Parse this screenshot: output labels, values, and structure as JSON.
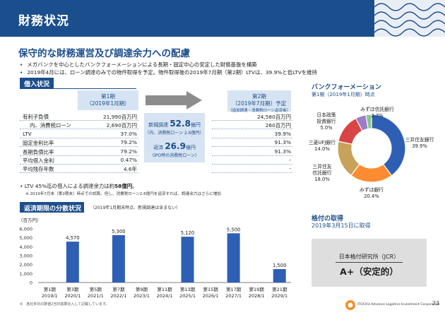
{
  "header": {
    "title": "財務状況"
  },
  "headline": "保守的な財務運営及び調達余力への配慮",
  "bullets": [
    "メガバンクを中心としたバンクフォーメーションによる長期・固定中心の安定した財務基盤を構築",
    "2019年4月には、ローン調達のみでの物件取得を予定。物件取得後の2019年7月期（第2期）LTVは、39.9%と低LTVを維持"
  ],
  "borrowing": {
    "tab": "借入状況",
    "col1": [
      "第1期",
      "（2019年1月期）"
    ],
    "col2": [
      "第2期",
      "（2019年7月期）予定",
      "（追加調達・消費税ローン返済後）"
    ],
    "rows": [
      {
        "label": "有利子負債",
        "v1": "21,990百万円",
        "v2": "24,580百万円"
      },
      {
        "label": "内、消費税ローン",
        "v1": "2,690百万円",
        "v2": "260百万円"
      },
      {
        "label": "LTV",
        "v1": "37.0%",
        "v2": "39.9%"
      },
      {
        "label": "固定金利比率",
        "v1": "79.2%",
        "v2": "91.3%"
      },
      {
        "label": "長期負債比率",
        "v1": "79.2%",
        "v2": "91.3%"
      },
      {
        "label": "平均借入金利",
        "v1": "0.47%",
        "v2": "-"
      },
      {
        "label": "平均残存年数",
        "v1": "4.6年",
        "v2": "-"
      }
    ],
    "new_label": "新規調達",
    "new_value": "52.8",
    "new_unit": "億円",
    "new_note": "（内、消費税ローン 2.6億円）",
    "repay_label": "返済",
    "repay_value": "26.9",
    "repay_unit": "億円",
    "repay_note": "（IPO時の消費税ローン）",
    "ltv_note_pre": "LTV 45%迄の借入による調達余力は約",
    "ltv_note_value": "58億円",
    "ltv_note_post": "。",
    "ltv_subnote": "※ 2019年7月末（第2期末）時点での試算。但し、消費税ローン2.6億円を返済すれば、調達余力はさらに増加"
  },
  "maturity": {
    "title": "返済期限の分散状況",
    "subtitle": "（2019年1月期末時点、新規調達は含まない）",
    "footnote": "※　各社末日の数値2当日換算比入して記載しています。",
    "chart_data": {
      "type": "bar",
      "title": "返済期限の分散状況",
      "ylabel": "（百万円）",
      "ylim": [
        0,
        6000
      ],
      "yticks": [
        "0",
        "1,000",
        "2,000",
        "3,000",
        "4,000",
        "5,000",
        "6,000"
      ],
      "categories": [
        "第1期\n2019/1",
        "第3期\n2020/1",
        "第5期\n2021/1",
        "第7期\n2022/1",
        "第9期\n2023/1",
        "第11期\n2024/1",
        "第13期\n2025/1",
        "第15期\n2026/1",
        "第17期\n2027/1",
        "第19期\n2028/1",
        "第21期\n2029/1"
      ],
      "cat_top": [
        "第1期",
        "第3期",
        "第5期",
        "第7期",
        "第9期",
        "第11期",
        "第13期",
        "第15期",
        "第17期",
        "第19期",
        "第21期"
      ],
      "cat_bottom": [
        "2019/1",
        "2020/1",
        "2021/1",
        "2022/1",
        "2023/1",
        "2024/1",
        "2025/1",
        "2026/1",
        "2027/1",
        "2028/1",
        "2029/1"
      ],
      "values": [
        0,
        4570,
        0,
        5300,
        0,
        0,
        5120,
        0,
        5500,
        0,
        1500
      ],
      "labels": [
        "",
        "4,570",
        "",
        "5,300",
        "",
        "",
        "5,120",
        "",
        "5,500",
        "",
        "1,500"
      ],
      "color": "#2f5fb4"
    }
  },
  "bank": {
    "title": "バンクフォーメーション",
    "subtitle": "第1期（2019年1月期）時点",
    "chart_data": {
      "type": "pie",
      "slices": [
        {
          "name": "三井住友銀行",
          "value": 39.9,
          "label": "39.9%",
          "color": "#2f5fb4"
        },
        {
          "name": "みずほ銀行",
          "value": 20.4,
          "label": "20.4%",
          "color": "#ff8b32"
        },
        {
          "name": "三井住友信託銀行",
          "value": 18.0,
          "label": "18.0%",
          "color": "#c6a25a"
        },
        {
          "name": "三菱UFJ銀行",
          "value": 14.0,
          "label": "14.0%",
          "color": "#d94545"
        },
        {
          "name": "日本政策投資銀行",
          "value": 5.0,
          "label": "5.0%",
          "color": "#9a7cc8"
        },
        {
          "name": "みずほ信託銀行",
          "value": 2.7,
          "label": "2.7%",
          "color": "#88c48a"
        }
      ]
    },
    "labels": {
      "smbc": [
        "三井住友銀行",
        "39.9%"
      ],
      "mizuho": [
        "みずほ銀行",
        "20.4%"
      ],
      "smtb": [
        "三井住友",
        "信託銀行",
        "18.0%"
      ],
      "mufg": [
        "三菱UFJ銀行",
        "14.0%"
      ],
      "dbj": [
        "日本政策",
        "投資銀行",
        "5.0%"
      ],
      "mizuho_trust": [
        "みずほ信託銀行",
        "2.7%"
      ]
    }
  },
  "rating": {
    "title": "格付の取得",
    "subtitle": "2019年3月15日に取得",
    "agency": "日本格付研究所（JCR）",
    "grade": "A+（安定的）"
  },
  "footer": {
    "company": "ITOCHU Advance Logistics Investment Corporation",
    "page": "23"
  },
  "colors": {
    "brand": "#1b4e8c",
    "bar": "#2f5fb4"
  }
}
